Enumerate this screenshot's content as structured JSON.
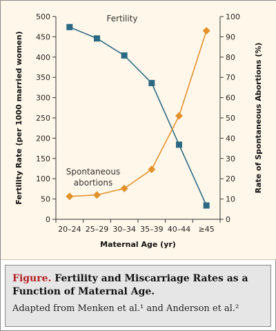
{
  "chart_data": {
    "type": "line",
    "categories": [
      "20–24",
      "25–29",
      "30–34",
      "35–39",
      "40–44",
      "≥45"
    ],
    "xlabel": "Maternal Age (yr)",
    "ylabel_left": "Fertility Rate (per 1000 married women)",
    "ylabel_right": "Rate of Spontaneous Abortions (%)",
    "ylim_left": [
      0,
      500
    ],
    "yticks_left": [
      "0",
      "50",
      "100",
      "150",
      "200",
      "250",
      "300",
      "350",
      "400",
      "450",
      "500"
    ],
    "ylim_right": [
      0,
      100
    ],
    "yticks_right": [
      "0",
      "10",
      "20",
      "30",
      "40",
      "50",
      "60",
      "70",
      "80",
      "90",
      "100"
    ],
    "grid": false,
    "series": [
      {
        "name": "Fertility",
        "axis": "left",
        "color": "#2b6a84",
        "marker": "square",
        "values": [
          474,
          446,
          404,
          336,
          184,
          34
        ]
      },
      {
        "name_lines": [
          "Spontaneous",
          "abortions"
        ],
        "axis": "right",
        "color": "#e3922b",
        "marker": "diamond",
        "values": [
          11.3,
          12,
          15.2,
          24.6,
          51,
          93
        ]
      }
    ]
  },
  "caption": {
    "lead": "Figure.",
    "title": " Fertility and Miscarriage Rates as a Function of Maternal Age.",
    "source": "Adapted from Menken et al.¹ and Anderson et al.²"
  }
}
